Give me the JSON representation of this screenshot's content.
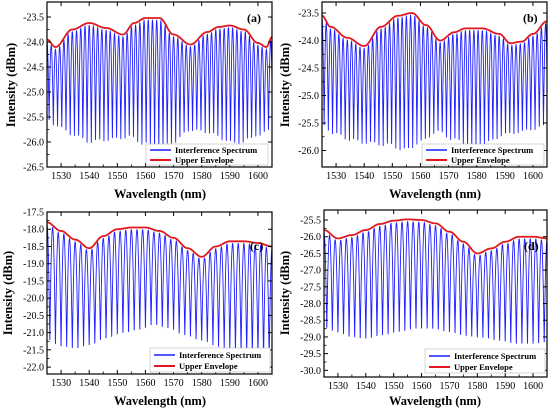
{
  "chart_data": [
    {
      "panel": "(a)",
      "type": "line",
      "xlabel": "Wavelength (nm)",
      "ylabel": "Intensity (dBm)",
      "xlim": [
        1525,
        1605
      ],
      "xticks": [
        1530,
        1540,
        1550,
        1560,
        1570,
        1580,
        1590,
        1600
      ],
      "ylim": [
        -26.5,
        -23.2
      ],
      "yticks": [
        -26.5,
        -26.0,
        -25.5,
        -25.0,
        -24.5,
        -24.0,
        -23.5
      ],
      "ytick_labels": [
        "-26.5",
        "-26.0",
        "-25.5",
        "-25.0",
        "-24.5",
        "-24.0",
        "-23.5"
      ],
      "fringe_period_nm": 1.5,
      "series": [
        {
          "name": "Interference Spectrum",
          "color": "#1f1fff",
          "kind": "fringes",
          "x": [
            1525,
            1528,
            1534,
            1540,
            1548,
            1554,
            1560,
            1565,
            1570,
            1576,
            1582,
            1588,
            1592,
            1597,
            1600,
            1605
          ],
          "min": [
            -25.6,
            -25.7,
            -25.9,
            -26.05,
            -26.0,
            -25.95,
            -26.1,
            -26.2,
            -26.05,
            -25.8,
            -25.85,
            -26.0,
            -26.1,
            -26.0,
            -25.9,
            -25.8
          ]
        },
        {
          "name": "Upper Envelope",
          "color": "#e0191e",
          "kind": "envelope",
          "x": [
            1525,
            1528,
            1534,
            1540,
            1546,
            1552,
            1556,
            1560,
            1565,
            1570,
            1576,
            1582,
            1586,
            1590,
            1595,
            1600,
            1603,
            1605
          ],
          "y": [
            -23.95,
            -24.1,
            -23.75,
            -23.62,
            -23.72,
            -23.85,
            -23.62,
            -23.52,
            -23.52,
            -23.85,
            -24.05,
            -23.8,
            -23.7,
            -23.67,
            -23.75,
            -24.02,
            -24.1,
            -23.9
          ]
        }
      ],
      "legend_position": "bottom-right"
    },
    {
      "panel": "(b)",
      "type": "line",
      "xlabel": "Wavelength (nm)",
      "ylabel": "Intensity (dBm)",
      "xlim": [
        1525,
        1605
      ],
      "xticks": [
        1530,
        1540,
        1550,
        1560,
        1570,
        1580,
        1590,
        1600
      ],
      "ylim": [
        -26.3,
        -23.3
      ],
      "yticks": [
        -26.0,
        -25.5,
        -25.0,
        -24.5,
        -24.0,
        -23.5
      ],
      "ytick_labels": [
        "-26.0",
        "-25.5",
        "-25.0",
        "-24.5",
        "-24.0",
        "-23.5"
      ],
      "fringe_period_nm": 1.5,
      "series": [
        {
          "name": "Interference Spectrum",
          "color": "#1f1fff",
          "kind": "fringes",
          "x": [
            1525,
            1530,
            1535,
            1540,
            1548,
            1555,
            1560,
            1566,
            1572,
            1578,
            1584,
            1590,
            1596,
            1600,
            1605
          ],
          "min": [
            -25.6,
            -25.75,
            -25.85,
            -25.9,
            -25.95,
            -26.05,
            -25.9,
            -25.7,
            -25.85,
            -26.0,
            -25.9,
            -25.75,
            -25.7,
            -25.65,
            -25.6
          ]
        },
        {
          "name": "Upper Envelope",
          "color": "#e0191e",
          "kind": "envelope",
          "x": [
            1525,
            1528,
            1534,
            1540,
            1546,
            1552,
            1557,
            1562,
            1567,
            1572,
            1576,
            1582,
            1588,
            1592,
            1596,
            1600,
            1605
          ],
          "y": [
            -23.55,
            -23.75,
            -23.95,
            -24.1,
            -23.75,
            -23.55,
            -23.5,
            -23.72,
            -24.0,
            -23.85,
            -23.78,
            -23.78,
            -23.88,
            -24.05,
            -24.02,
            -23.88,
            -23.65
          ]
        }
      ],
      "legend_position": "bottom-right"
    },
    {
      "panel": "(c)",
      "type": "line",
      "xlabel": "Wavelength (nm)",
      "ylabel": "Intensity (dBm)",
      "xlim": [
        1525,
        1605
      ],
      "xticks": [
        1530,
        1540,
        1550,
        1560,
        1570,
        1580,
        1590,
        1600
      ],
      "ylim": [
        -22.2,
        -17.5
      ],
      "yticks": [
        -22.0,
        -21.5,
        -21.0,
        -20.5,
        -20.0,
        -19.5,
        -19.0,
        -18.5,
        -18.0,
        -17.5
      ],
      "ytick_labels": [
        "-22.0",
        "-21.5",
        "-21.0",
        "-20.5",
        "-20.0",
        "-19.5",
        "-19.0",
        "-18.5",
        "-18.0",
        "-17.5"
      ],
      "fringe_period_nm": 2.0,
      "series": [
        {
          "name": "Interference Spectrum",
          "color": "#1f1fff",
          "kind": "fringes",
          "x": [
            1525,
            1530,
            1535,
            1540,
            1546,
            1552,
            1558,
            1563,
            1568,
            1574,
            1580,
            1586,
            1592,
            1598,
            1605
          ],
          "min": [
            -21.3,
            -21.5,
            -21.55,
            -21.45,
            -21.25,
            -21.1,
            -21.0,
            -20.85,
            -20.95,
            -21.15,
            -21.3,
            -21.5,
            -21.65,
            -21.8,
            -21.9
          ]
        },
        {
          "name": "Upper Envelope",
          "color": "#e0191e",
          "kind": "envelope",
          "x": [
            1525,
            1530,
            1535,
            1540,
            1545,
            1550,
            1555,
            1560,
            1565,
            1570,
            1575,
            1580,
            1585,
            1590,
            1595,
            1600,
            1605
          ],
          "y": [
            -17.8,
            -18.05,
            -18.3,
            -18.55,
            -18.2,
            -18.0,
            -17.95,
            -17.95,
            -18.05,
            -18.25,
            -18.55,
            -18.8,
            -18.5,
            -18.35,
            -18.35,
            -18.4,
            -18.5
          ]
        }
      ],
      "legend_position": "bottom-right"
    },
    {
      "panel": "(d)",
      "type": "line",
      "xlabel": "Wavelength (nm)",
      "ylabel": "Intensity (dBm)",
      "xlim": [
        1525,
        1605
      ],
      "xticks": [
        1530,
        1540,
        1550,
        1560,
        1570,
        1580,
        1590,
        1600
      ],
      "ylim": [
        -30.2,
        -25.2
      ],
      "yticks": [
        -30.0,
        -29.5,
        -29.0,
        -28.5,
        -28.0,
        -27.5,
        -27.0,
        -26.5,
        -26.0,
        -25.5
      ],
      "ytick_labels": [
        "-30.0",
        "-29.5",
        "-29.0",
        "-28.5",
        "-28.0",
        "-27.5",
        "-27.0",
        "-26.5",
        "-26.0",
        "-25.5"
      ],
      "fringe_period_nm": 2.0,
      "series": [
        {
          "name": "Interference Spectrum",
          "color": "#1f1fff",
          "kind": "fringes",
          "x": [
            1525,
            1530,
            1535,
            1540,
            1546,
            1552,
            1558,
            1564,
            1570,
            1576,
            1582,
            1588,
            1594,
            1600,
            1605
          ],
          "min": [
            -28.8,
            -28.95,
            -29.1,
            -29.15,
            -29.05,
            -28.95,
            -28.85,
            -28.85,
            -28.95,
            -29.05,
            -29.1,
            -29.2,
            -29.3,
            -29.3,
            -29.25
          ]
        },
        {
          "name": "Upper Envelope",
          "color": "#e0191e",
          "kind": "envelope",
          "x": [
            1525,
            1530,
            1535,
            1540,
            1545,
            1550,
            1555,
            1560,
            1565,
            1570,
            1575,
            1580,
            1585,
            1590,
            1595,
            1600,
            1605
          ],
          "y": [
            -25.8,
            -26.05,
            -25.95,
            -25.8,
            -25.62,
            -25.52,
            -25.48,
            -25.5,
            -25.6,
            -25.85,
            -26.15,
            -26.5,
            -26.35,
            -26.15,
            -26.0,
            -26.0,
            -26.05
          ]
        }
      ],
      "legend_position": "bottom-right"
    }
  ]
}
